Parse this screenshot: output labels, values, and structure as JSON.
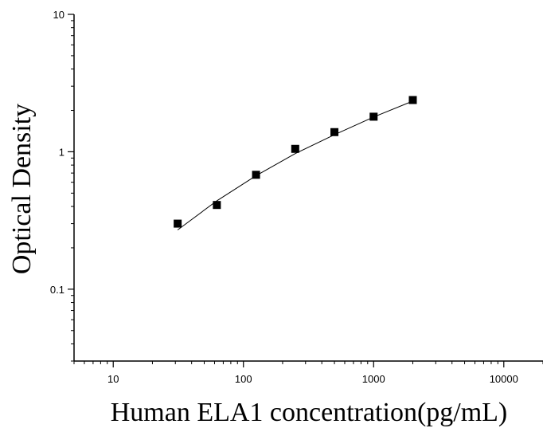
{
  "chart_data": {
    "type": "scatter",
    "x_scale": "log",
    "y_scale": "log",
    "xlabel": "Human ELA1 concentration(pg/mL)",
    "ylabel": "Optical Density",
    "xlim": [
      5,
      20000
    ],
    "ylim": [
      0.03,
      10
    ],
    "x_ticks": [
      10,
      100,
      1000,
      10000
    ],
    "x_tick_labels": [
      "10",
      "100",
      "1000",
      "10000"
    ],
    "y_ticks": [
      0.1,
      1,
      10
    ],
    "y_tick_labels": [
      "0.1",
      "1",
      "10"
    ],
    "grid": false,
    "legend": "none",
    "series": [
      {
        "marker": "square",
        "color": "#000000",
        "x": [
          31.25,
          62.5,
          125,
          250,
          500,
          1000,
          2000
        ],
        "y": [
          0.3,
          0.41,
          0.68,
          1.05,
          1.39,
          1.8,
          2.38
        ]
      }
    ],
    "fit_curve": {
      "color": "#000000",
      "x": [
        31.25,
        62.5,
        125,
        250,
        500,
        1000,
        2000
      ],
      "y": [
        0.27,
        0.44,
        0.67,
        0.97,
        1.33,
        1.79,
        2.34
      ]
    }
  }
}
